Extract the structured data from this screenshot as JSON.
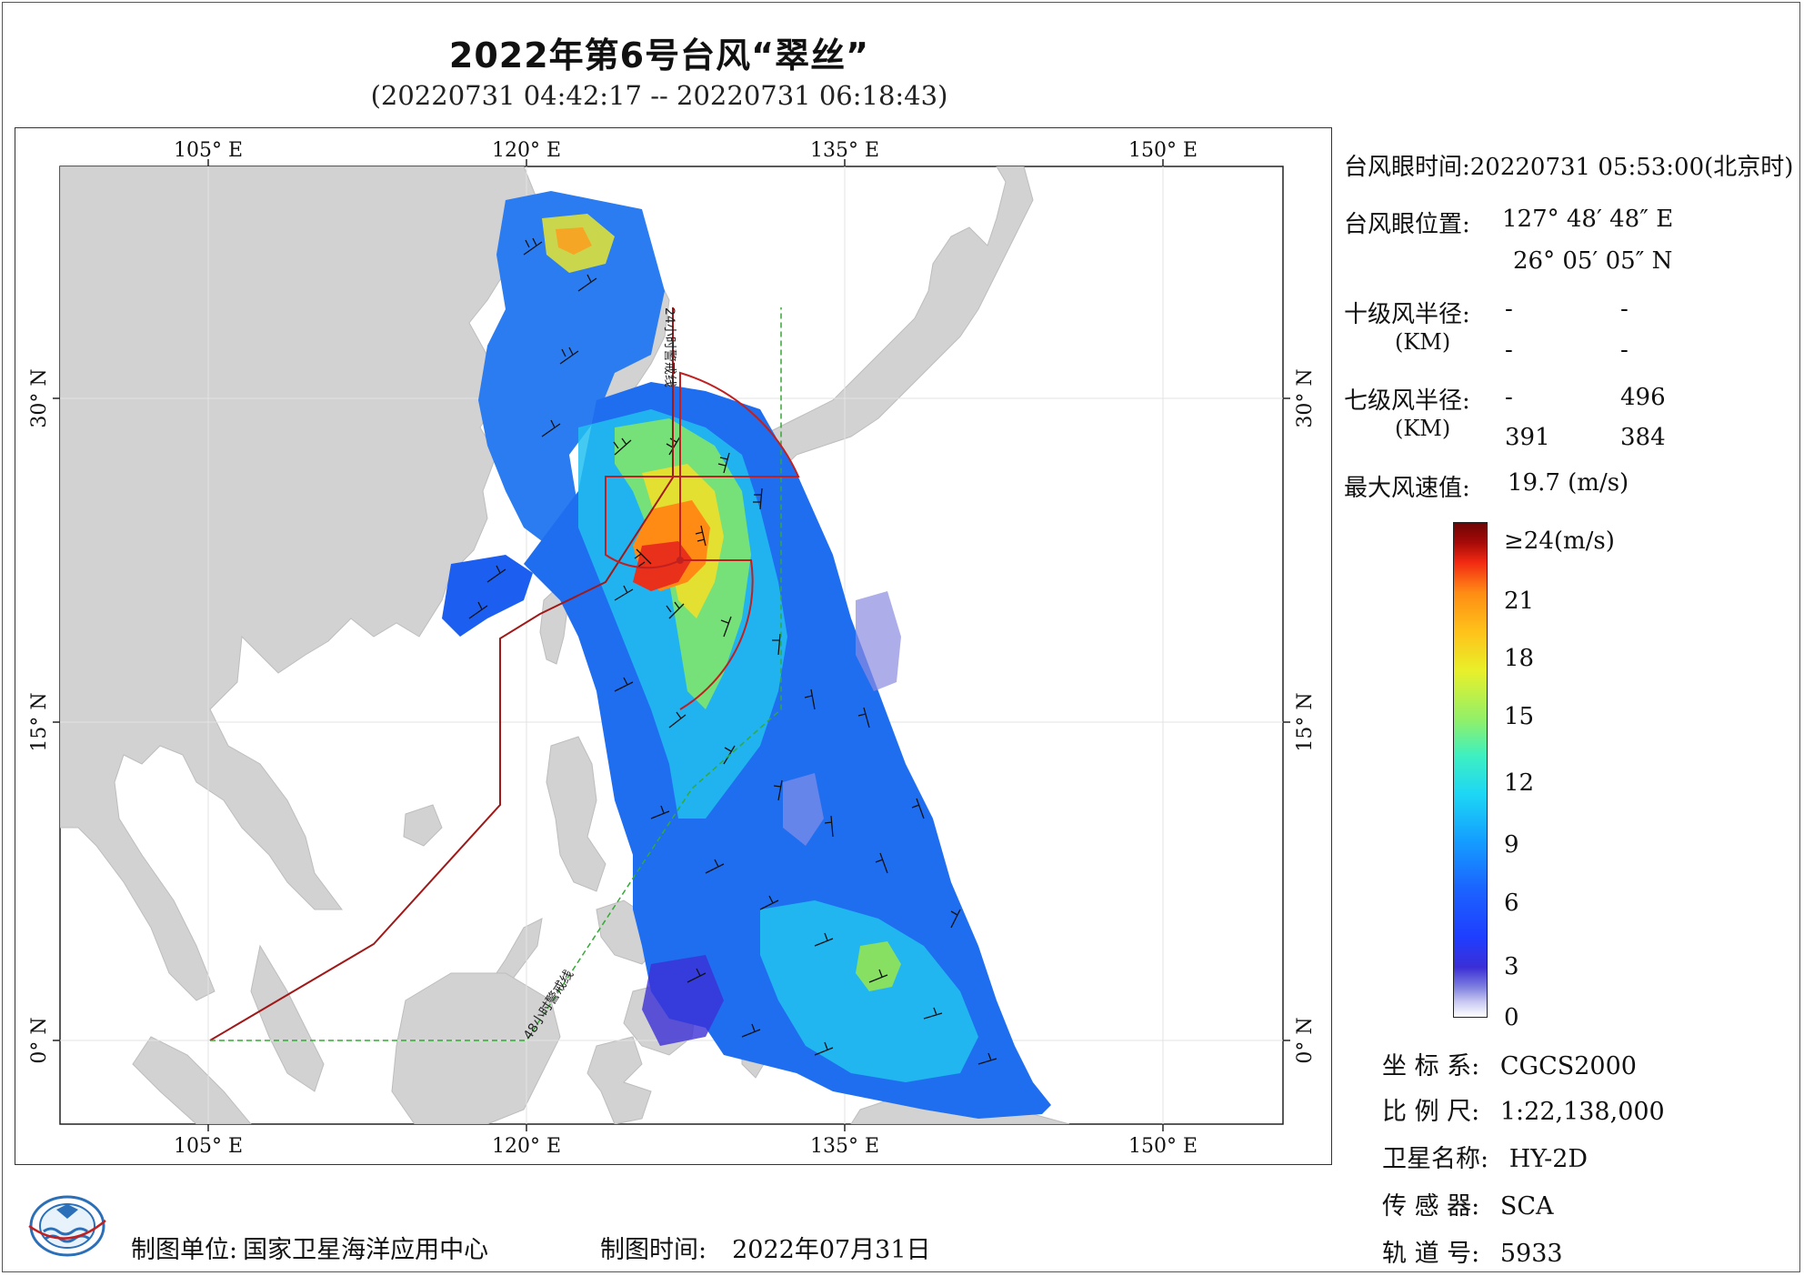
{
  "title": "2022年第6号台风“翠丝”",
  "subtitle": "(20220731 04:42:17 -- 20220731 06:18:43)",
  "map": {
    "lon_ticks": [
      "105° E",
      "120° E",
      "135° E",
      "150° E"
    ],
    "lat_ticks": [
      "0° N",
      "15° N",
      "30° N"
    ],
    "lines": {
      "warn24": "24小时警戒线",
      "warn48": "48小时警戒线"
    },
    "colors": {
      "land": "#d2d2d2",
      "ocean": "#ffffff",
      "warning_24h": "#a01818",
      "warning_48h": "#33aa33",
      "wind_radius": "#c02020"
    }
  },
  "info": {
    "eye_time_label": "台风眼时间:",
    "eye_time_value": "20220731 05:53:00(北京时)",
    "eye_pos_label": "台风眼位置:",
    "eye_lon": "127° 48′ 48″ E",
    "eye_lat": "26° 05′ 05″ N",
    "r10_label": "十级风半径:",
    "r10_unit": "(KM)",
    "r10_values": [
      "-",
      "-",
      "-",
      "-"
    ],
    "r7_label": "七级风半径:",
    "r7_unit": "(KM)",
    "r7_values": [
      "-",
      "496",
      "391",
      "384"
    ],
    "max_wind_label": "最大风速值:",
    "max_wind_value": "19.7  (m/s)"
  },
  "colorbar": {
    "labels": [
      "≥24(m/s)",
      "21",
      "18",
      "15",
      "12",
      "9",
      "6",
      "3",
      "0"
    ]
  },
  "meta": {
    "crs_label": "坐 标 系:",
    "crs_value": "CGCS2000",
    "scale_label": "比 例 尺:",
    "scale_value": "1:22,138,000",
    "sat_label": "卫星名称:",
    "sat_value": "HY-2D",
    "sensor_label": "传 感 器:",
    "sensor_value": "SCA",
    "orbit_label": "轨 道 号:",
    "orbit_value": "5933"
  },
  "footer": {
    "unit_label": "制图单位:",
    "unit_value": "国家卫星海洋应用中心",
    "time_label": "制图时间:",
    "time_value": "2022年07月31日"
  }
}
